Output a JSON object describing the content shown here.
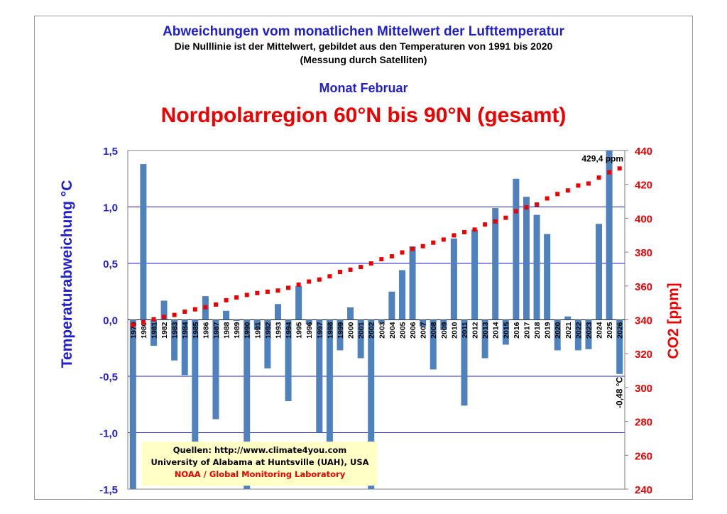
{
  "header": {
    "title": "Abweichungen vom monatlichen Mittelwert der Lufttemperatur",
    "subtitle_1": "Die Nulllinie ist der Mittelwert, gebildet aus den Temperaturen von 1991 bis 2020",
    "subtitle_2": "(Messung durch Satelliten)",
    "month": "Monat Februar",
    "region": "Nordpolarregion 60°N bis 90°N (gesamt)"
  },
  "sources": {
    "line1": "Quellen: http://www.climate4you.com",
    "line2": "University of Alabama at Huntsville (UAH), USA",
    "line3": "NOAA / Global Monitoring Laboratory"
  },
  "colors": {
    "bars": "#4f81bd",
    "co2": "#ee0000",
    "axis_left": "#1f1fd0",
    "grid": "#1f1fd0"
  },
  "chart_data": {
    "type": "bar",
    "ylabel": "Temperaturabweichung °C",
    "y2label": "CO2 [ppm]",
    "ylim": [
      -1.5,
      1.5
    ],
    "y2lim": [
      240,
      440
    ],
    "yticks": [
      "1,5",
      "1,0",
      "0,5",
      "0,0",
      "-0,5",
      "-1,0",
      "-1,5"
    ],
    "y2ticks": [
      "440",
      "420",
      "400",
      "380",
      "360",
      "340",
      "320",
      "300",
      "280",
      "260",
      "240"
    ],
    "grid": true,
    "categories": [
      "1979",
      "1980",
      "1981",
      "1982",
      "1983",
      "1984",
      "1985",
      "1986",
      "1987",
      "1988",
      "1989",
      "1990",
      "1991",
      "1992",
      "1993",
      "1994",
      "1995",
      "1996",
      "1997",
      "1998",
      "1999",
      "2000",
      "2001",
      "2002",
      "2003",
      "2004",
      "2005",
      "2006",
      "2007",
      "2008",
      "2009",
      "2010",
      "2011",
      "2012",
      "2013",
      "2014",
      "2015",
      "2016",
      "2017",
      "2018",
      "2019",
      "2020",
      "2021",
      "2022",
      "2023",
      "2024",
      "2025",
      "2026"
    ],
    "series": [
      {
        "values": [
          -1.62,
          1.38,
          -0.23,
          0.17,
          -0.36,
          -0.49,
          -1.08,
          0.21,
          -0.88,
          0.08,
          -0.01,
          -1.62,
          -0.09,
          -0.43,
          0.14,
          -0.72,
          0.3,
          -0.04,
          -1.0,
          -1.45,
          -0.27,
          0.11,
          -0.34,
          -1.62,
          -0.03,
          0.25,
          0.44,
          0.65,
          -0.06,
          -0.44,
          -0.09,
          0.72,
          -0.76,
          0.8,
          -0.34,
          0.99,
          -0.22,
          1.25,
          1.09,
          0.93,
          0.76,
          -0.27,
          0.03,
          -0.27,
          -0.26,
          0.85,
          1.52,
          -0.48
        ]
      },
      {
        "name": "CO2",
        "values": [
          337.0,
          338.6,
          340.3,
          341.7,
          342.9,
          344.8,
          346.2,
          347.4,
          349.0,
          351.6,
          353.2,
          354.7,
          355.8,
          356.6,
          357.3,
          358.9,
          360.8,
          362.6,
          363.8,
          365.7,
          368.3,
          369.6,
          371.2,
          373.3,
          375.8,
          377.5,
          379.8,
          381.9,
          383.5,
          385.6,
          387.4,
          389.9,
          391.8,
          393.3,
          396.3,
          398.1,
          400.3,
          404.1,
          406.4,
          408.1,
          411.7,
          414.3,
          416.4,
          419.3,
          420.5,
          424.0,
          427.1,
          429.4
        ]
      }
    ],
    "annotations": {
      "co2_last": "429,4 ppm",
      "temp_last": "-0,48 °C"
    }
  }
}
